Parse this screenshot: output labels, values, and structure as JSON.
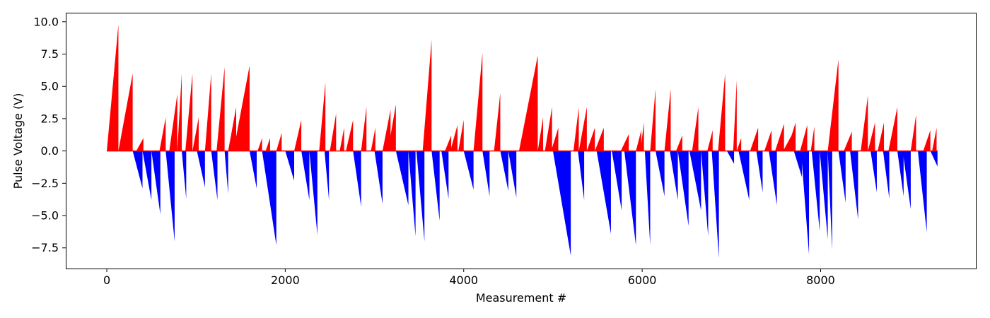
{
  "chart_data": {
    "type": "bar",
    "title": "",
    "xlabel": "Measurement #",
    "ylabel": "Pulse Voltage (V)",
    "xlim": [
      -460,
      9740
    ],
    "ylim": [
      -9.1,
      10.7
    ],
    "x_ticks": [
      0,
      2000,
      4000,
      6000,
      8000
    ],
    "x_tick_labels": [
      "0",
      "2000",
      "4000",
      "6000",
      "8000"
    ],
    "y_ticks": [
      -7.5,
      -5.0,
      -2.5,
      0.0,
      2.5,
      5.0,
      7.5,
      10.0
    ],
    "y_tick_labels": [
      "−7.5",
      "−5.0",
      "−2.5",
      "0.0",
      "2.5",
      "5.0",
      "7.5",
      "10.0"
    ],
    "grid": false,
    "legend": "none",
    "colors": {
      "positive": "#ff0000",
      "negative": "#0000ff"
    },
    "pulse_ramps": [
      {
        "start": 0,
        "end": 130,
        "peak": 9.8
      },
      {
        "start": 130,
        "end": 290,
        "peak": 6.0
      },
      {
        "start": 290,
        "end": 400,
        "peak": -2.9
      },
      {
        "start": 330,
        "end": 410,
        "peak": 1.0
      },
      {
        "start": 400,
        "end": 500,
        "peak": -3.8
      },
      {
        "start": 500,
        "end": 600,
        "peak": -4.9
      },
      {
        "start": 590,
        "end": 660,
        "peak": 2.6
      },
      {
        "start": 660,
        "end": 760,
        "peak": -7.0
      },
      {
        "start": 700,
        "end": 790,
        "peak": 4.4
      },
      {
        "start": 790,
        "end": 840,
        "peak": 6.0
      },
      {
        "start": 840,
        "end": 890,
        "peak": -3.7
      },
      {
        "start": 880,
        "end": 960,
        "peak": 6.0
      },
      {
        "start": 960,
        "end": 1030,
        "peak": 2.6
      },
      {
        "start": 1010,
        "end": 1100,
        "peak": -2.8
      },
      {
        "start": 1100,
        "end": 1170,
        "peak": 6.0
      },
      {
        "start": 1170,
        "end": 1240,
        "peak": -3.8
      },
      {
        "start": 1230,
        "end": 1320,
        "peak": 6.5
      },
      {
        "start": 1320,
        "end": 1360,
        "peak": -3.3
      },
      {
        "start": 1360,
        "end": 1450,
        "peak": 3.4
      },
      {
        "start": 1420,
        "end": 1600,
        "peak": 6.6
      },
      {
        "start": 1600,
        "end": 1680,
        "peak": -2.9
      },
      {
        "start": 1690,
        "end": 1740,
        "peak": 1.0
      },
      {
        "start": 1740,
        "end": 1900,
        "peak": -7.3
      },
      {
        "start": 1780,
        "end": 1830,
        "peak": 1.0
      },
      {
        "start": 1900,
        "end": 1960,
        "peak": 1.4
      },
      {
        "start": 2000,
        "end": 2100,
        "peak": -2.3
      },
      {
        "start": 2100,
        "end": 2180,
        "peak": 2.4
      },
      {
        "start": 2180,
        "end": 2270,
        "peak": -3.8
      },
      {
        "start": 2270,
        "end": 2360,
        "peak": -6.5
      },
      {
        "start": 2380,
        "end": 2450,
        "peak": 5.3
      },
      {
        "start": 2440,
        "end": 2490,
        "peak": -3.8
      },
      {
        "start": 2500,
        "end": 2570,
        "peak": 2.9
      },
      {
        "start": 2610,
        "end": 2660,
        "peak": 1.8
      },
      {
        "start": 2680,
        "end": 2760,
        "peak": 2.4
      },
      {
        "start": 2760,
        "end": 2850,
        "peak": -4.3
      },
      {
        "start": 2850,
        "end": 2910,
        "peak": 3.4
      },
      {
        "start": 2960,
        "end": 3010,
        "peak": 1.8
      },
      {
        "start": 3000,
        "end": 3090,
        "peak": -4.1
      },
      {
        "start": 3090,
        "end": 3180,
        "peak": 3.2
      },
      {
        "start": 3150,
        "end": 3240,
        "peak": 3.6
      },
      {
        "start": 3240,
        "end": 3380,
        "peak": -4.2
      },
      {
        "start": 3380,
        "end": 3460,
        "peak": -6.6
      },
      {
        "start": 3470,
        "end": 3560,
        "peak": -7.0
      },
      {
        "start": 3540,
        "end": 3640,
        "peak": 8.6
      },
      {
        "start": 3640,
        "end": 3730,
        "peak": -5.4
      },
      {
        "start": 3750,
        "end": 3830,
        "peak": -3.7
      },
      {
        "start": 3790,
        "end": 3860,
        "peak": 1.2
      },
      {
        "start": 3850,
        "end": 3930,
        "peak": 2.0
      },
      {
        "start": 3940,
        "end": 4000,
        "peak": 2.4
      },
      {
        "start": 4000,
        "end": 4110,
        "peak": -3.0
      },
      {
        "start": 4110,
        "end": 4210,
        "peak": 7.6
      },
      {
        "start": 4210,
        "end": 4290,
        "peak": -3.5
      },
      {
        "start": 4340,
        "end": 4410,
        "peak": 4.5
      },
      {
        "start": 4410,
        "end": 4500,
        "peak": -3.1
      },
      {
        "start": 4500,
        "end": 4590,
        "peak": -3.6
      },
      {
        "start": 4620,
        "end": 4830,
        "peak": 7.4
      },
      {
        "start": 4830,
        "end": 4890,
        "peak": 2.6
      },
      {
        "start": 4910,
        "end": 4990,
        "peak": 3.4
      },
      {
        "start": 4980,
        "end": 5060,
        "peak": 1.8
      },
      {
        "start": 5000,
        "end": 5200,
        "peak": -8.1
      },
      {
        "start": 5230,
        "end": 5290,
        "peak": 3.4
      },
      {
        "start": 5280,
        "end": 5350,
        "peak": -3.8
      },
      {
        "start": 5290,
        "end": 5380,
        "peak": 3.4
      },
      {
        "start": 5380,
        "end": 5470,
        "peak": 1.8
      },
      {
        "start": 5470,
        "end": 5570,
        "peak": 1.8
      },
      {
        "start": 5490,
        "end": 5650,
        "peak": -6.4
      },
      {
        "start": 5660,
        "end": 5770,
        "peak": -4.6
      },
      {
        "start": 5760,
        "end": 5850,
        "peak": 1.3
      },
      {
        "start": 5800,
        "end": 5930,
        "peak": -7.3
      },
      {
        "start": 5930,
        "end": 5990,
        "peak": 1.6
      },
      {
        "start": 5980,
        "end": 6020,
        "peak": 2.2
      },
      {
        "start": 6030,
        "end": 6090,
        "peak": -7.3
      },
      {
        "start": 6090,
        "end": 6150,
        "peak": 4.8
      },
      {
        "start": 6150,
        "end": 6250,
        "peak": -3.5
      },
      {
        "start": 6250,
        "end": 6320,
        "peak": 4.8
      },
      {
        "start": 6310,
        "end": 6400,
        "peak": -3.8
      },
      {
        "start": 6380,
        "end": 6450,
        "peak": 1.2
      },
      {
        "start": 6400,
        "end": 6520,
        "peak": -5.8
      },
      {
        "start": 6530,
        "end": 6660,
        "peak": -4.6
      },
      {
        "start": 6560,
        "end": 6630,
        "peak": 3.4
      },
      {
        "start": 6660,
        "end": 6740,
        "peak": -6.6
      },
      {
        "start": 6730,
        "end": 6790,
        "peak": 1.6
      },
      {
        "start": 6780,
        "end": 6860,
        "peak": -8.3
      },
      {
        "start": 6850,
        "end": 6930,
        "peak": 6.0
      },
      {
        "start": 6950,
        "end": 7030,
        "peak": -1.0
      },
      {
        "start": 7020,
        "end": 7060,
        "peak": 5.5
      },
      {
        "start": 7060,
        "end": 7110,
        "peak": 1.0
      },
      {
        "start": 7080,
        "end": 7200,
        "peak": -3.8
      },
      {
        "start": 7210,
        "end": 7300,
        "peak": 1.8
      },
      {
        "start": 7280,
        "end": 7350,
        "peak": -3.2
      },
      {
        "start": 7370,
        "end": 7450,
        "peak": 1.6
      },
      {
        "start": 7420,
        "end": 7510,
        "peak": -4.2
      },
      {
        "start": 7490,
        "end": 7590,
        "peak": 2.1
      },
      {
        "start": 7580,
        "end": 7690,
        "peak": 1.4
      },
      {
        "start": 7620,
        "end": 7720,
        "peak": 2.2
      },
      {
        "start": 7700,
        "end": 7790,
        "peak": -2.0
      },
      {
        "start": 7770,
        "end": 7850,
        "peak": 2.0
      },
      {
        "start": 7780,
        "end": 7870,
        "peak": -8.0
      },
      {
        "start": 7890,
        "end": 7930,
        "peak": 1.9
      },
      {
        "start": 7900,
        "end": 7990,
        "peak": -6.2
      },
      {
        "start": 7990,
        "end": 8080,
        "peak": -6.8
      },
      {
        "start": 8080,
        "end": 8200,
        "peak": 7.1
      },
      {
        "start": 8080,
        "end": 8130,
        "peak": -7.7
      },
      {
        "start": 8200,
        "end": 8280,
        "peak": -4.0
      },
      {
        "start": 8260,
        "end": 8350,
        "peak": 1.5
      },
      {
        "start": 8330,
        "end": 8420,
        "peak": -5.3
      },
      {
        "start": 8450,
        "end": 8530,
        "peak": 4.3
      },
      {
        "start": 8530,
        "end": 8610,
        "peak": 2.2
      },
      {
        "start": 8560,
        "end": 8630,
        "peak": -3.2
      },
      {
        "start": 8640,
        "end": 8710,
        "peak": 2.2
      },
      {
        "start": 8700,
        "end": 8770,
        "peak": -3.7
      },
      {
        "start": 8760,
        "end": 8860,
        "peak": 3.4
      },
      {
        "start": 8860,
        "end": 8930,
        "peak": -3.5
      },
      {
        "start": 8920,
        "end": 9010,
        "peak": -4.5
      },
      {
        "start": 9010,
        "end": 9070,
        "peak": 2.8
      },
      {
        "start": 9090,
        "end": 9190,
        "peak": -6.3
      },
      {
        "start": 9150,
        "end": 9230,
        "peak": 1.6
      },
      {
        "start": 9230,
        "end": 9310,
        "peak": -1.2
      },
      {
        "start": 9250,
        "end": 9300,
        "peak": 1.8
      }
    ]
  }
}
